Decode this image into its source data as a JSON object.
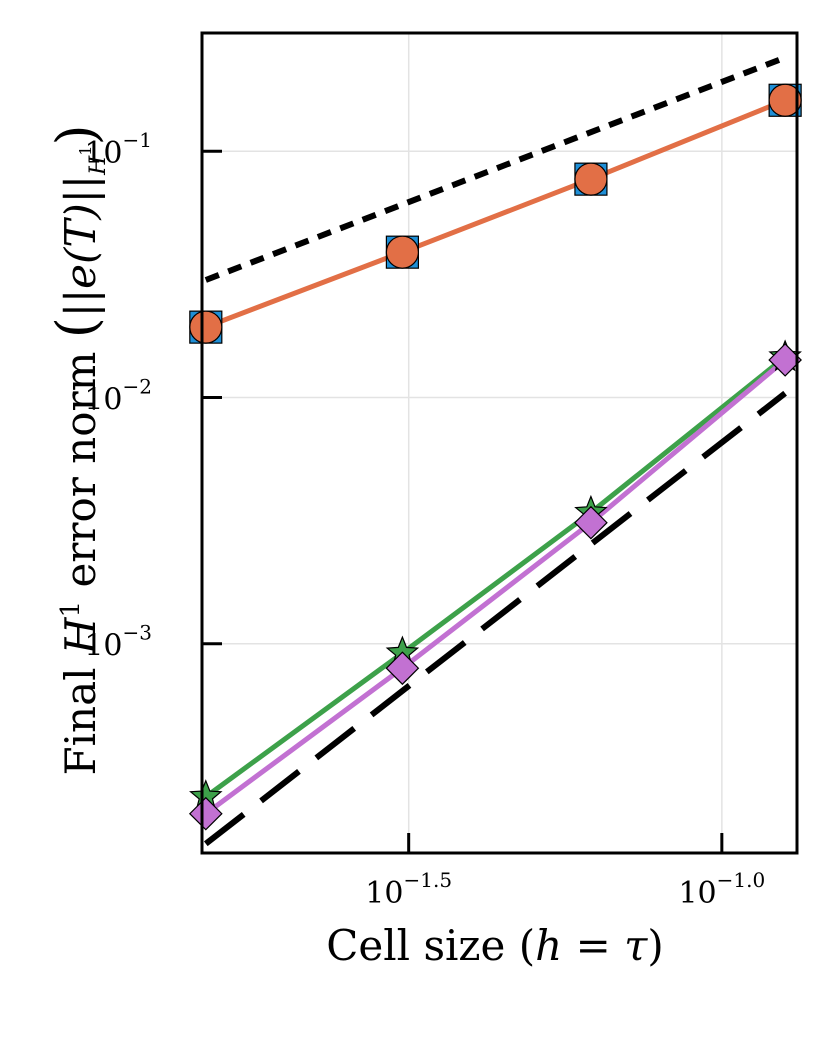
{
  "chart_data": {
    "type": "line",
    "title": "",
    "xlabel": "Cell size (h = τ)",
    "xlabel_parts": {
      "pre": "Cell size (",
      "h": "h",
      "eq": " = ",
      "tau": "τ",
      "post": ")"
    },
    "ylabel": "Final H¹ error norm (||e(T)||_{H¹})",
    "ylabel_parts": {
      "pre": "Final ",
      "H": "H",
      "sup": "1",
      "mid": " error norm ",
      "open": "(",
      "norm": "||e(T)||",
      "sub": "H",
      "subsup": "1",
      "close": ")"
    },
    "xscale": "log10",
    "yscale": "log10",
    "xlim_log10": [
      -1.83,
      -0.88
    ],
    "ylim_log10": [
      -3.85,
      -0.52
    ],
    "x_ticks": [
      {
        "log10": -1.5,
        "base": "10",
        "exp": "−1.5"
      },
      {
        "log10": -1.0,
        "base": "10",
        "exp": "−1.0"
      }
    ],
    "y_ticks": [
      {
        "log10": -3,
        "base": "10",
        "exp": "−3"
      },
      {
        "log10": -2,
        "base": "10",
        "exp": "−2"
      },
      {
        "log10": -1,
        "base": "10",
        "exp": "−1"
      }
    ],
    "grid": true,
    "legend": "none",
    "series": [
      {
        "name": "square",
        "marker": "square",
        "color": "#1f8fd6",
        "line": false,
        "x": [
          0.015,
          0.0309,
          0.0618,
          0.1262
        ],
        "y": [
          0.0193,
          0.0389,
          0.077,
          0.161
        ]
      },
      {
        "name": "circle",
        "marker": "circle",
        "color": "#e26f46",
        "line": true,
        "x": [
          0.015,
          0.0309,
          0.0618,
          0.1262
        ],
        "y": [
          0.0193,
          0.0389,
          0.077,
          0.161
        ]
      },
      {
        "name": "star",
        "marker": "star",
        "color": "#3da14a",
        "line": true,
        "x": [
          0.015,
          0.0309,
          0.0618,
          0.1262
        ],
        "y": [
          0.000239,
          0.000916,
          0.00341,
          0.0146
        ]
      },
      {
        "name": "diamond",
        "marker": "diamond",
        "color": "#c271d2",
        "line": true,
        "x": [
          0.015,
          0.0309,
          0.0618,
          0.1262
        ],
        "y": [
          0.000204,
          0.000795,
          0.0031,
          0.0142
        ]
      },
      {
        "name": "reference order 1",
        "style": "dotted",
        "color": "#000000",
        "line": true,
        "x": [
          0.015,
          0.1262
        ],
        "y": [
          0.03,
          0.24
        ]
      },
      {
        "name": "reference order 2",
        "style": "dashed",
        "color": "#000000",
        "line": true,
        "x": [
          0.015,
          0.1262
        ],
        "y": [
          0.000154,
          0.0104
        ]
      }
    ]
  }
}
